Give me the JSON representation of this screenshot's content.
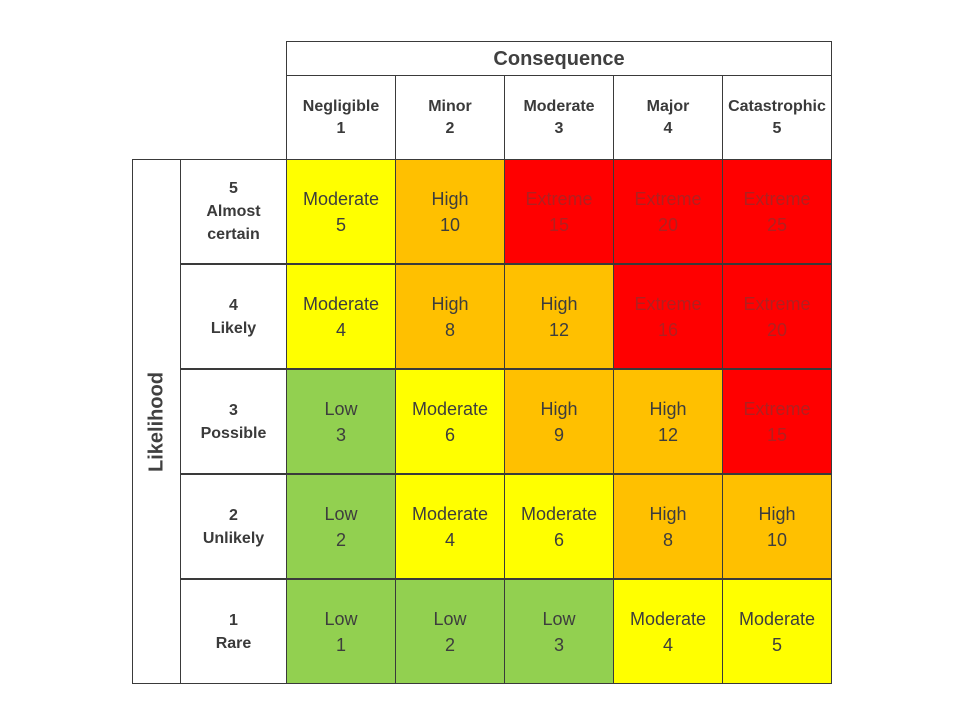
{
  "consequence_title": "Consequence",
  "likelihood_title": "Likelihood",
  "colors": {
    "Low": "#92d050",
    "Moderate": "#ffff00",
    "High": "#ffc000",
    "Extreme": "#ff0000"
  },
  "columns": [
    {
      "name": "Negligible",
      "num": "1"
    },
    {
      "name": "Minor",
      "num": "2"
    },
    {
      "name": "Moderate",
      "num": "3"
    },
    {
      "name": "Major",
      "num": "4"
    },
    {
      "name": "Catastrophic",
      "num": "5"
    }
  ],
  "rows": [
    {
      "num": "5",
      "name": "Almost certain",
      "name_line1": "Almost",
      "name_line2": "certain",
      "cells": [
        {
          "level": "Moderate",
          "score": "5"
        },
        {
          "level": "High",
          "score": "10"
        },
        {
          "level": "Extreme",
          "score": "15"
        },
        {
          "level": "Extreme",
          "score": "20"
        },
        {
          "level": "Extreme",
          "score": "25"
        }
      ]
    },
    {
      "num": "4",
      "name": "Likely",
      "name_line1": "Likely",
      "name_line2": "",
      "cells": [
        {
          "level": "Moderate",
          "score": "4"
        },
        {
          "level": "High",
          "score": "8"
        },
        {
          "level": "High",
          "score": "12"
        },
        {
          "level": "Extreme",
          "score": "16"
        },
        {
          "level": "Extreme",
          "score": "20"
        }
      ]
    },
    {
      "num": "3",
      "name": "Possible",
      "name_line1": "Possible",
      "name_line2": "",
      "cells": [
        {
          "level": "Low",
          "score": "3"
        },
        {
          "level": "Moderate",
          "score": "6"
        },
        {
          "level": "High",
          "score": "9"
        },
        {
          "level": "High",
          "score": "12"
        },
        {
          "level": "Extreme",
          "score": "15"
        }
      ]
    },
    {
      "num": "2",
      "name": "Unlikely",
      "name_line1": "Unlikely",
      "name_line2": "",
      "cells": [
        {
          "level": "Low",
          "score": "2"
        },
        {
          "level": "Moderate",
          "score": "4"
        },
        {
          "level": "Moderate",
          "score": "6"
        },
        {
          "level": "High",
          "score": "8"
        },
        {
          "level": "High",
          "score": "10"
        }
      ]
    },
    {
      "num": "1",
      "name": "Rare",
      "name_line1": "Rare",
      "name_line2": "",
      "cells": [
        {
          "level": "Low",
          "score": "1"
        },
        {
          "level": "Low",
          "score": "2"
        },
        {
          "level": "Low",
          "score": "3"
        },
        {
          "level": "Moderate",
          "score": "4"
        },
        {
          "level": "Moderate",
          "score": "5"
        }
      ]
    }
  ]
}
